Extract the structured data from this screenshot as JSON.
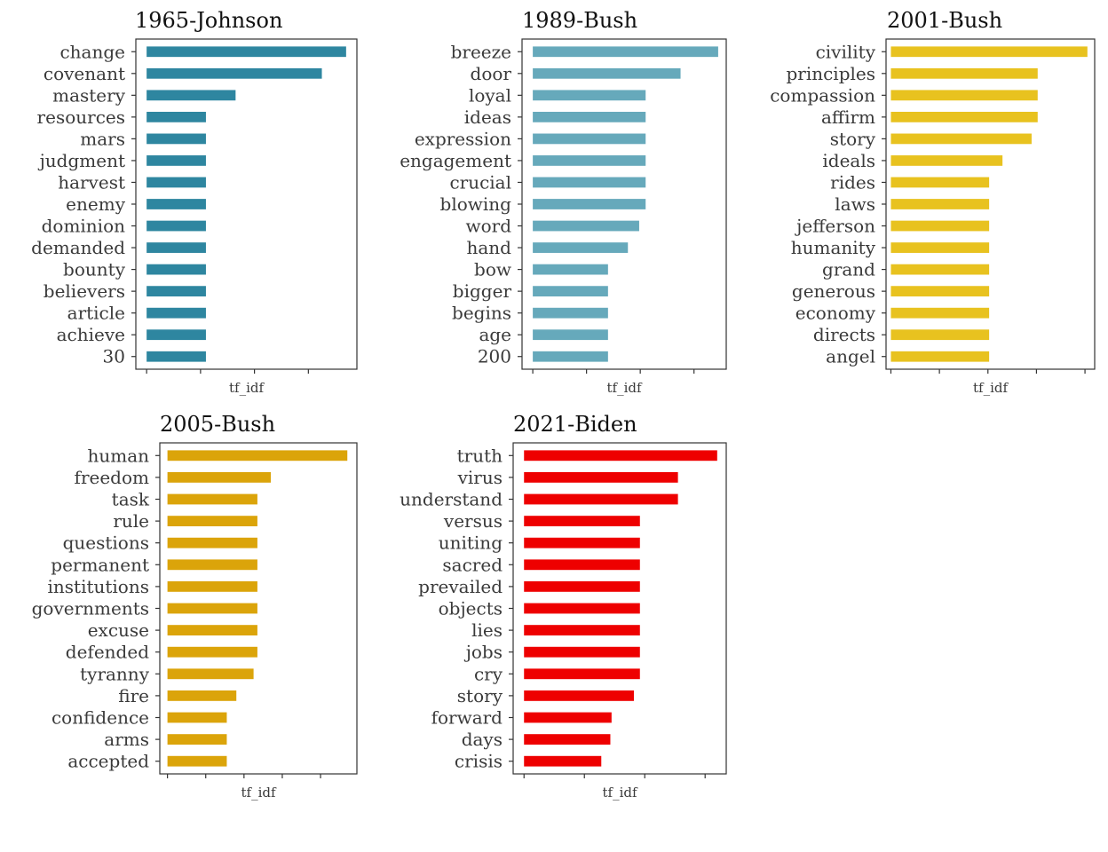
{
  "chart_data": [
    {
      "type": "bar",
      "title": "1965-Johnson",
      "xlabel": "tf_idf",
      "color": "#2e86a0",
      "categories": [
        "change",
        "covenant",
        "mastery",
        "resources",
        "mars",
        "judgment",
        "harvest",
        "enemy",
        "dominion",
        "demanded",
        "bounty",
        "believers",
        "article",
        "achieve",
        "30"
      ],
      "values": [
        3.7,
        3.25,
        1.65,
        1.1,
        1.1,
        1.1,
        1.1,
        1.1,
        1.1,
        1.1,
        1.1,
        1.1,
        1.1,
        1.1,
        1.1
      ],
      "xlim": [
        -0.2,
        3.9
      ],
      "ticks": [
        0,
        1,
        2,
        3
      ]
    },
    {
      "type": "bar",
      "title": "1989-Bush",
      "xlabel": "tf_idf",
      "color": "#66a9bb",
      "categories": [
        "breeze",
        "door",
        "loyal",
        "ideas",
        "expression",
        "engagement",
        "crucial",
        "blowing",
        "word",
        "hand",
        "bow",
        "bigger",
        "begins",
        "age",
        "200"
      ],
      "values": [
        3.45,
        2.75,
        2.1,
        2.1,
        2.1,
        2.1,
        2.1,
        2.1,
        1.98,
        1.77,
        1.4,
        1.4,
        1.4,
        1.4,
        1.4
      ],
      "xlim": [
        -0.2,
        3.6
      ],
      "ticks": [
        0,
        1,
        2,
        3
      ]
    },
    {
      "type": "bar",
      "title": "2001-Bush",
      "xlabel": "tf_idf",
      "color": "#e8c21f",
      "categories": [
        "civility",
        "principles",
        "compassion",
        "affirm",
        "story",
        "ideals",
        "rides",
        "laws",
        "jefferson",
        "humanity",
        "grand",
        "generous",
        "economy",
        "directs",
        "angel"
      ],
      "values": [
        8.1,
        6.05,
        6.05,
        6.05,
        5.8,
        4.6,
        4.05,
        4.05,
        4.05,
        4.05,
        4.05,
        4.05,
        4.05,
        4.05,
        4.05
      ],
      "xlim": [
        -0.2,
        8.4
      ],
      "ticks": [
        0,
        2,
        4,
        6,
        8
      ]
    },
    {
      "type": "bar",
      "title": "2005-Bush",
      "xlabel": "tf_idf",
      "color": "#dba40a",
      "categories": [
        "human",
        "freedom",
        "task",
        "rule",
        "questions",
        "permanent",
        "institutions",
        "governments",
        "excuse",
        "defended",
        "tyranny",
        "fire",
        "confidence",
        "arms",
        "accepted"
      ],
      "values": [
        4.7,
        2.7,
        2.35,
        2.35,
        2.35,
        2.35,
        2.35,
        2.35,
        2.35,
        2.35,
        2.25,
        1.8,
        1.55,
        1.55,
        1.55
      ],
      "xlim": [
        -0.2,
        4.95
      ],
      "ticks": [
        0,
        1,
        2,
        3,
        4
      ]
    },
    {
      "type": "bar",
      "title": "2021-Biden",
      "xlabel": "tf_idf",
      "color": "#ee0000",
      "categories": [
        "truth",
        "virus",
        "understand",
        "versus",
        "uniting",
        "sacred",
        "prevailed",
        "objects",
        "lies",
        "jobs",
        "cry",
        "story",
        "forward",
        "days",
        "crisis"
      ],
      "values": [
        3.2,
        2.55,
        2.55,
        1.92,
        1.92,
        1.92,
        1.92,
        1.92,
        1.92,
        1.92,
        1.92,
        1.82,
        1.45,
        1.43,
        1.28
      ],
      "xlim": [
        -0.18,
        3.35
      ],
      "ticks": [
        0,
        1,
        2,
        3
      ]
    }
  ]
}
